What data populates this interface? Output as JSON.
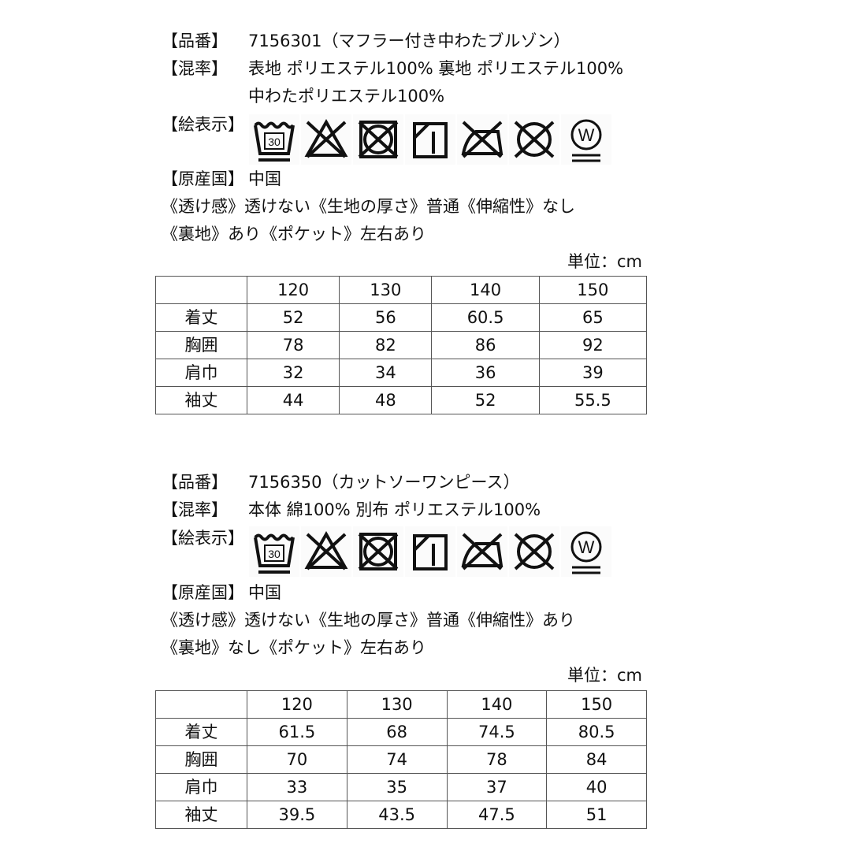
{
  "products": [
    {
      "item_label": "【品番】",
      "item_value": "7156301（マフラー付き中わたブルゾン）",
      "mix_label": "【混率】",
      "mix_value": "表地 ポリエステル100% 裏地 ポリエステル100%",
      "mix_value_2": "中わたポリエステル100%",
      "care_label": "【絵表示】",
      "care_icons": [
        "wash-30-icon",
        "no-bleach-icon",
        "no-tumble-dry-icon",
        "drip-dry-shade-icon",
        "no-iron-icon",
        "no-dry-clean-icon",
        "wet-clean-icon"
      ],
      "wash_temp": "30",
      "wet_letter": "W",
      "origin_label": "【原産国】",
      "origin_value": "中国",
      "attrs_1": "《透け感》透けない《生地の厚さ》普通《伸縮性》なし",
      "attrs_2": "《裏地》あり《ポケット》左右あり",
      "unit": "単位：cm",
      "table": {
        "columns": [
          "",
          "120",
          "130",
          "140",
          "150"
        ],
        "rows": [
          [
            "着丈",
            "52",
            "56",
            "60.5",
            "65"
          ],
          [
            "胸囲",
            "78",
            "82",
            "86",
            "92"
          ],
          [
            "肩巾",
            "32",
            "34",
            "36",
            "39"
          ],
          [
            "袖丈",
            "44",
            "48",
            "52",
            "55.5"
          ]
        ]
      }
    },
    {
      "item_label": "【品番】",
      "item_value": "7156350（カットソーワンピース）",
      "mix_label": "【混率】",
      "mix_value": "本体 綿100% 別布 ポリエステル100%",
      "care_label": "【絵表示】",
      "care_icons": [
        "wash-30-icon",
        "no-bleach-icon",
        "no-tumble-dry-icon",
        "drip-dry-shade-icon",
        "no-iron-icon",
        "no-dry-clean-icon",
        "wet-clean-icon"
      ],
      "wash_temp": "30",
      "wet_letter": "W",
      "origin_label": "【原産国】",
      "origin_value": "中国",
      "attrs_1": "《透け感》透けない《生地の厚さ》普通《伸縮性》あり",
      "attrs_2": "《裏地》なし《ポケット》左右あり",
      "unit": "単位：cm",
      "table": {
        "columns": [
          "",
          "120",
          "130",
          "140",
          "150"
        ],
        "rows": [
          [
            "着丈",
            "61.5",
            "68",
            "74.5",
            "80.5"
          ],
          [
            "胸囲",
            "70",
            "74",
            "78",
            "84"
          ],
          [
            "肩巾",
            "33",
            "35",
            "37",
            "40"
          ],
          [
            "袖丈",
            "39.5",
            "43.5",
            "47.5",
            "51"
          ]
        ]
      }
    }
  ]
}
